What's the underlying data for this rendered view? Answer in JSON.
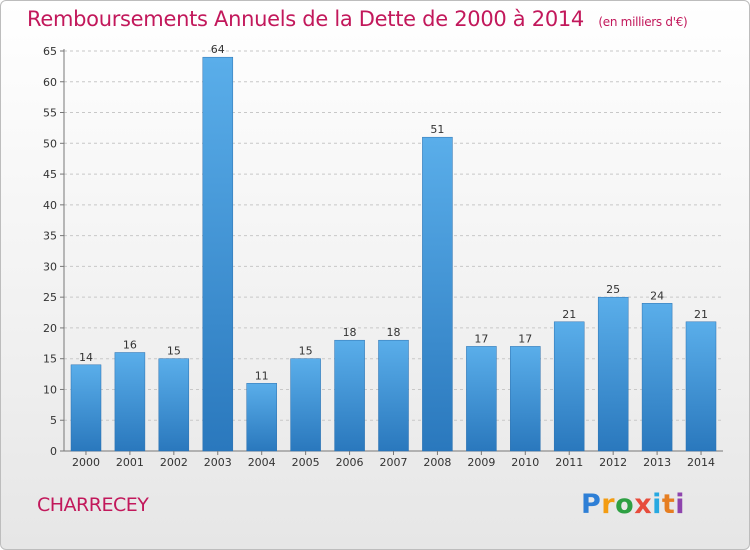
{
  "chart_data": {
    "type": "bar",
    "title": "Remboursements Annuels de la Dette de 2000 à 2014",
    "subtitle": "(en milliers d'€)",
    "xlabel": "",
    "ylabel": "",
    "categories": [
      "2000",
      "2001",
      "2002",
      "2003",
      "2004",
      "2005",
      "2006",
      "2007",
      "2008",
      "2009",
      "2010",
      "2011",
      "2012",
      "2013",
      "2014"
    ],
    "values": [
      14,
      16,
      15,
      64,
      11,
      15,
      18,
      18,
      51,
      17,
      17,
      21,
      25,
      24,
      21
    ],
    "ylim": [
      0,
      65
    ],
    "yticks": [
      0,
      5,
      10,
      15,
      20,
      25,
      30,
      35,
      40,
      45,
      50,
      55,
      60,
      65
    ],
    "grid": true,
    "legend": "none",
    "bar_color": "#4a9fe0"
  },
  "commune": "CHARRECEY",
  "logo": {
    "letters": [
      "P",
      "r",
      "o",
      "x",
      "i",
      "t",
      "i"
    ],
    "colors": [
      "#2e7fd6",
      "#f39c12",
      "#2ea043",
      "#e74c3c",
      "#27a9e1",
      "#e67e22",
      "#8e44ad"
    ]
  }
}
